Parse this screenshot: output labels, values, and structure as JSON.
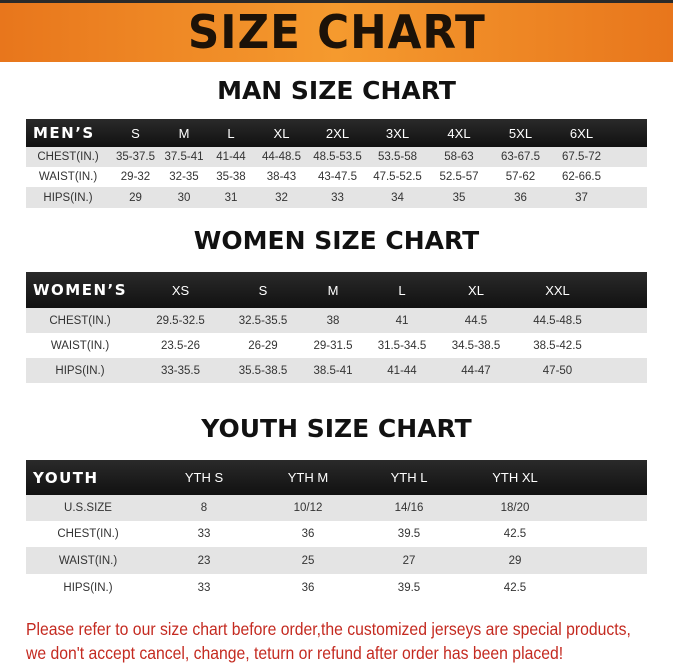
{
  "banner_title": "SIZE CHART",
  "men": {
    "title": "MAN SIZE CHART",
    "header": [
      "MEN’S",
      "S",
      "M",
      "L",
      "XL",
      "2XL",
      "3XL",
      "4XL",
      "5XL",
      "6XL"
    ],
    "rows": [
      [
        "CHEST(IN.)",
        "35-37.5",
        "37.5-41",
        "41-44",
        "44-48.5",
        "48.5-53.5",
        "53.5-58",
        "58-63",
        "63-67.5",
        "67.5-72"
      ],
      [
        "WAIST(IN.)",
        "29-32",
        "32-35",
        "35-38",
        "38-43",
        "43-47.5",
        "47.5-52.5",
        "52.5-57",
        "57-62",
        "62-66.5"
      ],
      [
        "HIPS(IN.)",
        "29",
        "30",
        "31",
        "32",
        "33",
        "34",
        "35",
        "36",
        "37"
      ]
    ]
  },
  "women": {
    "title": "WOMEN SIZE CHART",
    "header": [
      "WOMEN’S",
      "XS",
      "S",
      "M",
      "L",
      "XL",
      "XXL"
    ],
    "rows": [
      [
        "CHEST(IN.)",
        "29.5-32.5",
        "32.5-35.5",
        "38",
        "41",
        "44.5",
        "44.5-48.5"
      ],
      [
        "WAIST(IN.)",
        "23.5-26",
        "26-29",
        "29-31.5",
        "31.5-34.5",
        "34.5-38.5",
        "38.5-42.5"
      ],
      [
        "HIPS(IN.)",
        "33-35.5",
        "35.5-38.5",
        "38.5-41",
        "41-44",
        "44-47",
        "47-50"
      ]
    ]
  },
  "youth": {
    "title": "YOUTH SIZE CHART",
    "header": [
      "YOUTH",
      "YTH S",
      "YTH M",
      "YTH L",
      "YTH XL"
    ],
    "rows": [
      [
        "U.S.SIZE",
        "8",
        "10/12",
        "14/16",
        "18/20"
      ],
      [
        "CHEST(IN.)",
        "33",
        "36",
        "39.5",
        "42.5"
      ],
      [
        "WAIST(IN.)",
        "23",
        "25",
        "27",
        "29"
      ],
      [
        "HIPS(IN.)",
        "33",
        "36",
        "39.5",
        "42.5"
      ]
    ]
  },
  "footer": {
    "line1": "Please refer to our size chart before order,the customized jerseys are special products,",
    "line2": "we don't accept cancel, change, teturn or refund after order has been placed!"
  },
  "colors": {
    "banner": "#f08a26",
    "header_row": "#1a1a1a",
    "stripe": "#e4e4e4",
    "footer_text": "#c42a20"
  }
}
